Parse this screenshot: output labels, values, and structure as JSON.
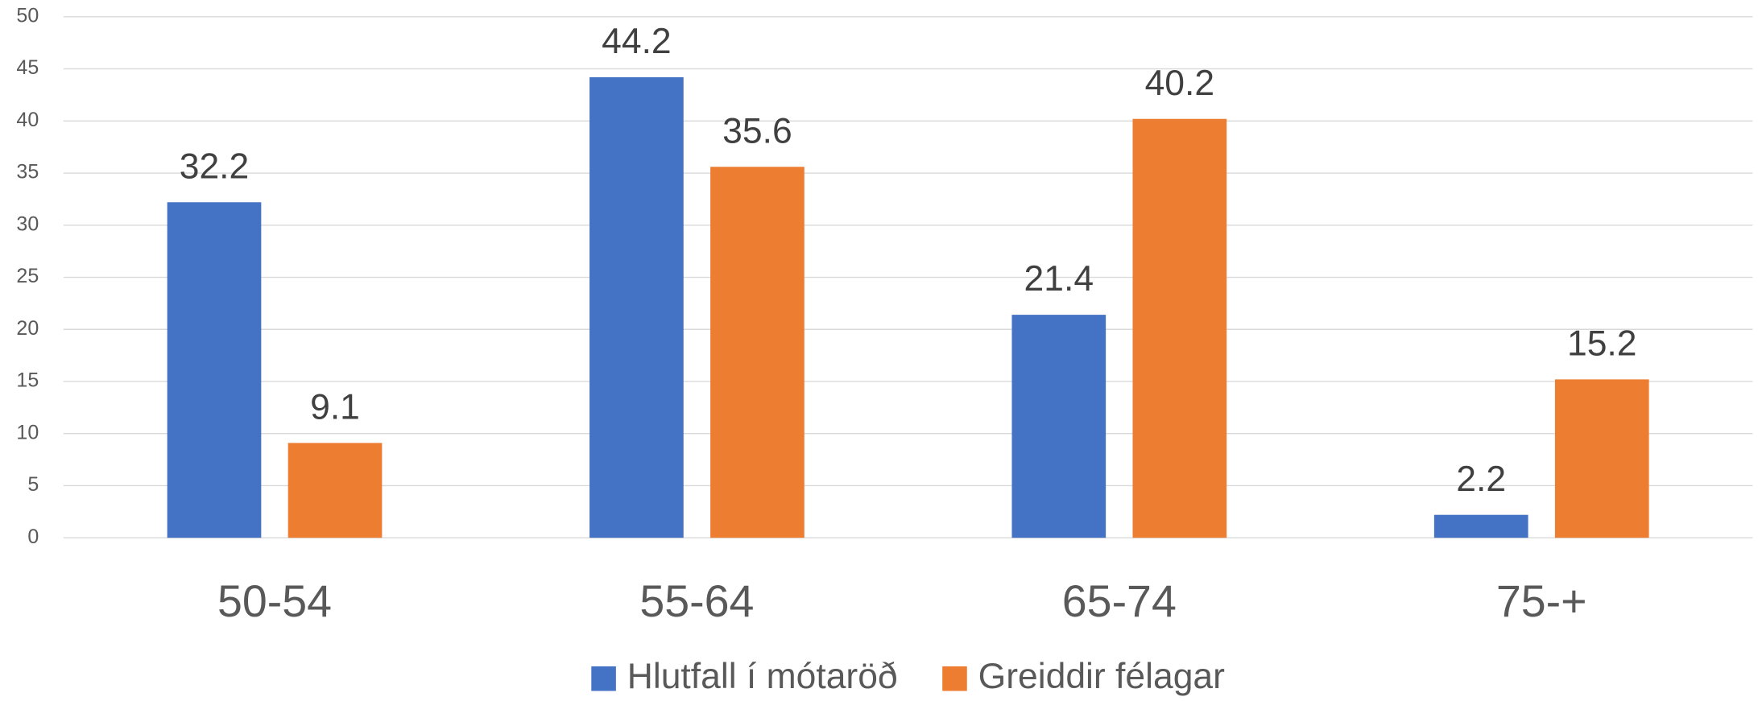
{
  "chart_data": {
    "type": "bar",
    "categories": [
      "50-54",
      "55-64",
      "65-74",
      "75-+"
    ],
    "series": [
      {
        "name": "Hlutfall í mótaröð",
        "color": "#4472c4",
        "values": [
          32.2,
          44.2,
          21.4,
          2.2
        ]
      },
      {
        "name": "Greiddir félagar",
        "color": "#ed7d31",
        "values": [
          9.1,
          35.6,
          40.2,
          15.2
        ]
      }
    ],
    "ylim": [
      0,
      50
    ],
    "yticks": [
      0,
      5,
      10,
      15,
      20,
      25,
      30,
      35,
      40,
      45,
      50
    ],
    "grid": true,
    "legend": "bottom"
  }
}
